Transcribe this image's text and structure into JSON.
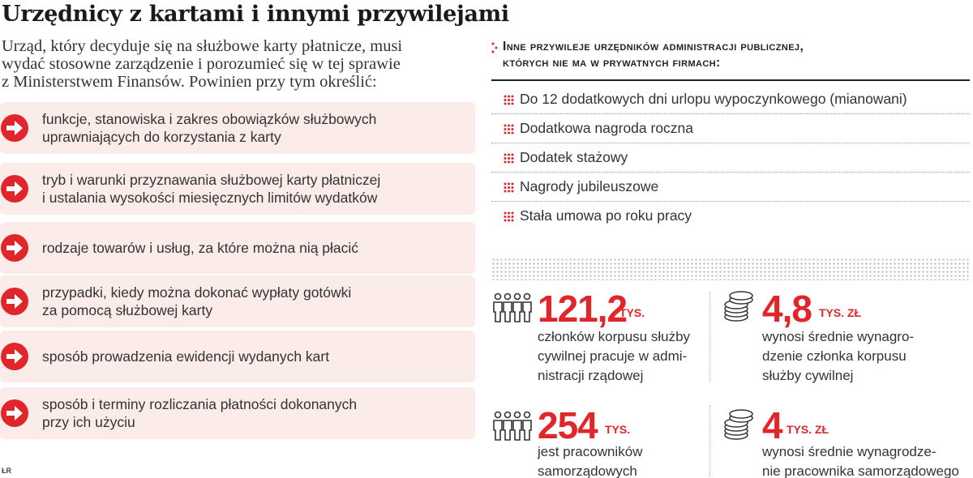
{
  "title": "Urzędnicy z kartami i innymi przywilejami",
  "intro": {
    "lines": [
      "Urząd, który decyduje się na służbowe karty płatnicze, musi",
      "wydać stosowne zarządzenie i porozumieć się w tej sprawie",
      "z Ministerstwem Finansów. Powinien przy tym określić:"
    ]
  },
  "requirements": [
    {
      "lines": [
        "funkcje, stanowiska i zakres obowiązków służbowych",
        "uprawniających do korzystania z karty"
      ]
    },
    {
      "lines": [
        "tryb i warunki przyznawania służbowej karty płatniczej",
        "i ustalania wysokości miesięcznych limitów wydatków"
      ]
    },
    {
      "lines": [
        "rodzaje towarów i usług, za które można nią płacić"
      ]
    },
    {
      "lines": [
        "przypadki, kiedy można dokonać wypłaty gotówki",
        "za pomocą służbowej karty"
      ]
    },
    {
      "lines": [
        "sposób prowadzenia ewidencji wydanych kart"
      ]
    },
    {
      "lines": [
        "sposób i terminy rozliczania płatności dokonanych",
        "przy ich użyciu"
      ]
    }
  ],
  "credit": "ŁR",
  "privileges": {
    "heading_lines": [
      "Inne przywileje urzędników administracji publicznej,",
      "których nie ma w prywatnych firmach:"
    ],
    "items": [
      "Do 12 dodatkowych dni urlopu wypoczynkowego (mianowani)",
      "Dodatkowa nagroda roczna",
      "Dodatek stażowy",
      "Nagrody jubileuszowe",
      "Stała umowa po roku pracy"
    ]
  },
  "stats": [
    {
      "icon": "people-icon",
      "value": "121,2",
      "unit": "TYS.",
      "lines": [
        "członków korpusu służby",
        "cywilnej pracuje w admi-",
        "nistracji rządowej"
      ]
    },
    {
      "icon": "coins-icon",
      "value": "4,8",
      "unit": "TYS. ZŁ",
      "lines": [
        "wynosi średnie wynagro-",
        "dzenie członka korpusu",
        "służby cywilnej"
      ]
    },
    {
      "icon": "people-icon",
      "value": "254",
      "unit": "TYS.",
      "lines": [
        "jest pracowników",
        "samorządowych"
      ]
    },
    {
      "icon": "coins-icon",
      "value": "4",
      "unit": "TYS. ZŁ",
      "lines": [
        "wynosi średnie wynagrodze-",
        "nie pracownika samorządowego"
      ]
    }
  ],
  "colors": {
    "accent": "#e0262a",
    "item_bg": "#fbece9"
  }
}
